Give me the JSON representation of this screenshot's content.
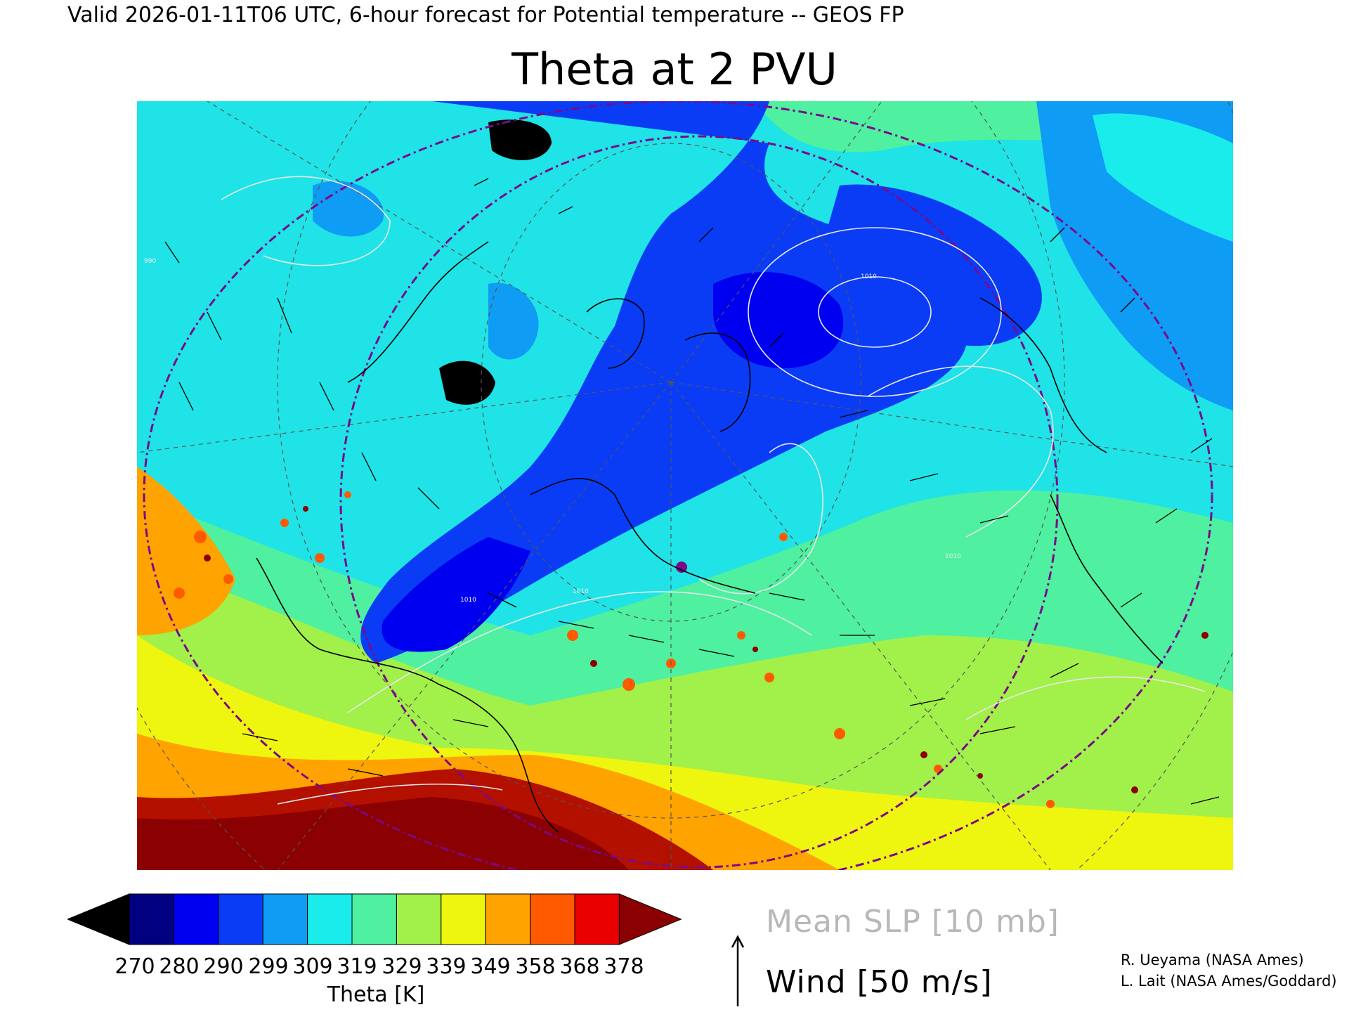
{
  "header": {
    "text": "Valid 2026-01-11T06 UTC, 6-hour forecast for Potential temperature -- GEOS FP"
  },
  "title": "Theta at 2 PVU",
  "map": {
    "projection": "polar stereographic",
    "region": "North America, North Atlantic, Europe",
    "contour_labels": [
      "1010",
      "1010",
      "1010",
      "990",
      "1010"
    ]
  },
  "colorbar": {
    "label": "Theta [K]",
    "ticks": [
      "270",
      "280",
      "290",
      "299",
      "309",
      "319",
      "329",
      "339",
      "349",
      "358",
      "368",
      "378"
    ],
    "colors": [
      "#000000",
      "#000080",
      "#0000f0",
      "#0a3cf5",
      "#0f9cf5",
      "#1aecec",
      "#4ff0a0",
      "#a2f04a",
      "#eef50f",
      "#ffa300",
      "#ff5a00",
      "#ea0000",
      "#8b0000"
    ]
  },
  "legend": {
    "slp": "Mean SLP [10 mb]",
    "wind": "Wind [50 m/s]"
  },
  "credits": {
    "line1": "R. Ueyama (NASA Ames)",
    "line2": "L. Lait (NASA Ames/Goddard)"
  }
}
